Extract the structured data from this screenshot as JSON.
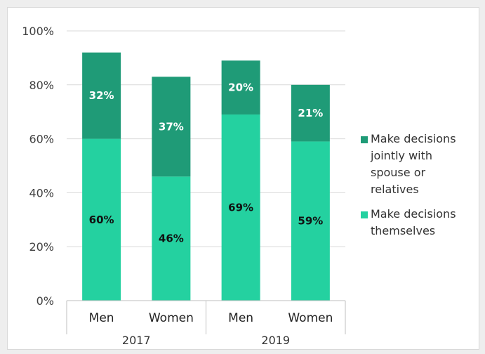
{
  "chart_data": {
    "type": "bar",
    "stacked": true,
    "title": "",
    "xlabel": "",
    "ylabel": "",
    "ylim": [
      0,
      100
    ],
    "yticks": [
      "0%",
      "20%",
      "40%",
      "60%",
      "80%",
      "100%"
    ],
    "categories": [
      "Men",
      "Women",
      "Men",
      "Women"
    ],
    "groups": [
      {
        "label": "2017",
        "categories": [
          "Men",
          "Women"
        ]
      },
      {
        "label": "2019",
        "categories": [
          "Men",
          "Women"
        ]
      }
    ],
    "series": [
      {
        "name": "Make decisions themselves",
        "values": [
          60,
          46,
          69,
          59
        ],
        "labels": [
          "60%",
          "46%",
          "69%",
          "59%"
        ],
        "color": "#24d1a0"
      },
      {
        "name": "Make decisions jointly with spouse or relatives",
        "values": [
          32,
          37,
          20,
          21
        ],
        "labels": [
          "32%",
          "37%",
          "20%",
          "21%"
        ],
        "color": "#1f9b77"
      }
    ],
    "legend_position": "right",
    "grid": true,
    "legend": [
      {
        "lines": [
          "Make decisions",
          "jointly with",
          "spouse or",
          "relatives"
        ],
        "color": "#1f9b77"
      },
      {
        "lines": [
          "Make decisions",
          "themselves"
        ],
        "color": "#24d1a0"
      }
    ]
  },
  "colors": {
    "background": "#eeeeee",
    "panel": "#ffffff",
    "grid": "#d9d9d9",
    "axis": "#bfbfbf"
  }
}
